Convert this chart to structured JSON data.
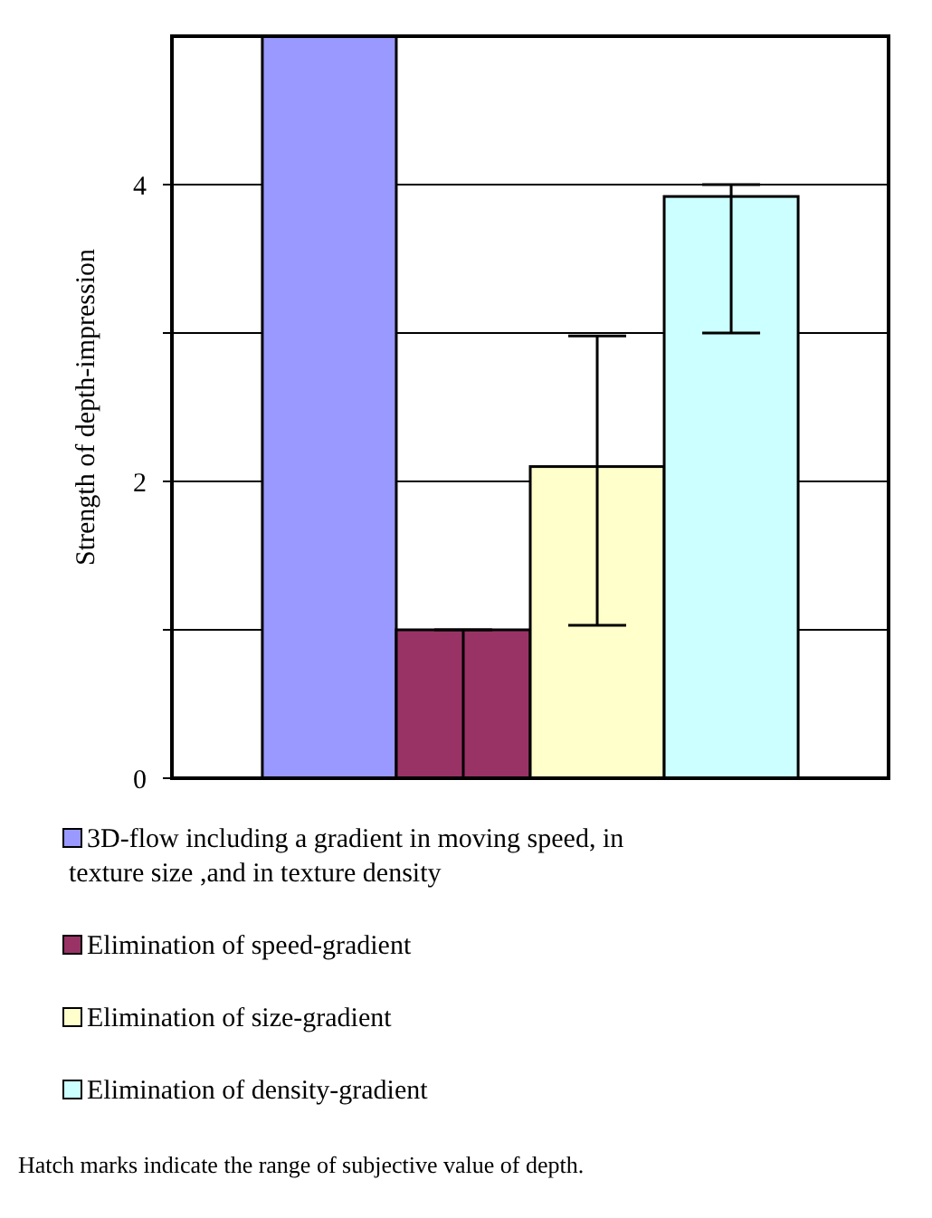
{
  "chart_data": {
    "type": "bar",
    "categories": [
      null
    ],
    "series": [
      {
        "name": "3D-flow including a gradient in moving speed, in texture size ,and in texture density",
        "color": "#9999ff",
        "values": [
          5
        ],
        "errors": [
          null
        ]
      },
      {
        "name": "Elimination of speed-gradient",
        "color": "#993366",
        "values": [
          1
        ],
        "errors": [
          [
            0,
            1
          ]
        ]
      },
      {
        "name": "Elimination of size-gradient",
        "color": "#ffffcc",
        "values": [
          2.1
        ],
        "errors": [
          [
            1.03,
            2.98
          ]
        ]
      },
      {
        "name": "Elimination of density-gradient",
        "color": "#ccffff",
        "values": [
          3.92
        ],
        "errors": [
          [
            3,
            4
          ]
        ]
      }
    ],
    "ylabel": "Strength of depth-impression",
    "ylim": [
      0,
      5
    ],
    "yticks": [
      0,
      {
        "value": 1,
        "label": null
      },
      2,
      {
        "value": 3,
        "label": null
      },
      4
    ],
    "grid": "y",
    "legend": "bottom",
    "annotations": [
      "Hatch marks indicate the range of subjective value of depth."
    ]
  }
}
